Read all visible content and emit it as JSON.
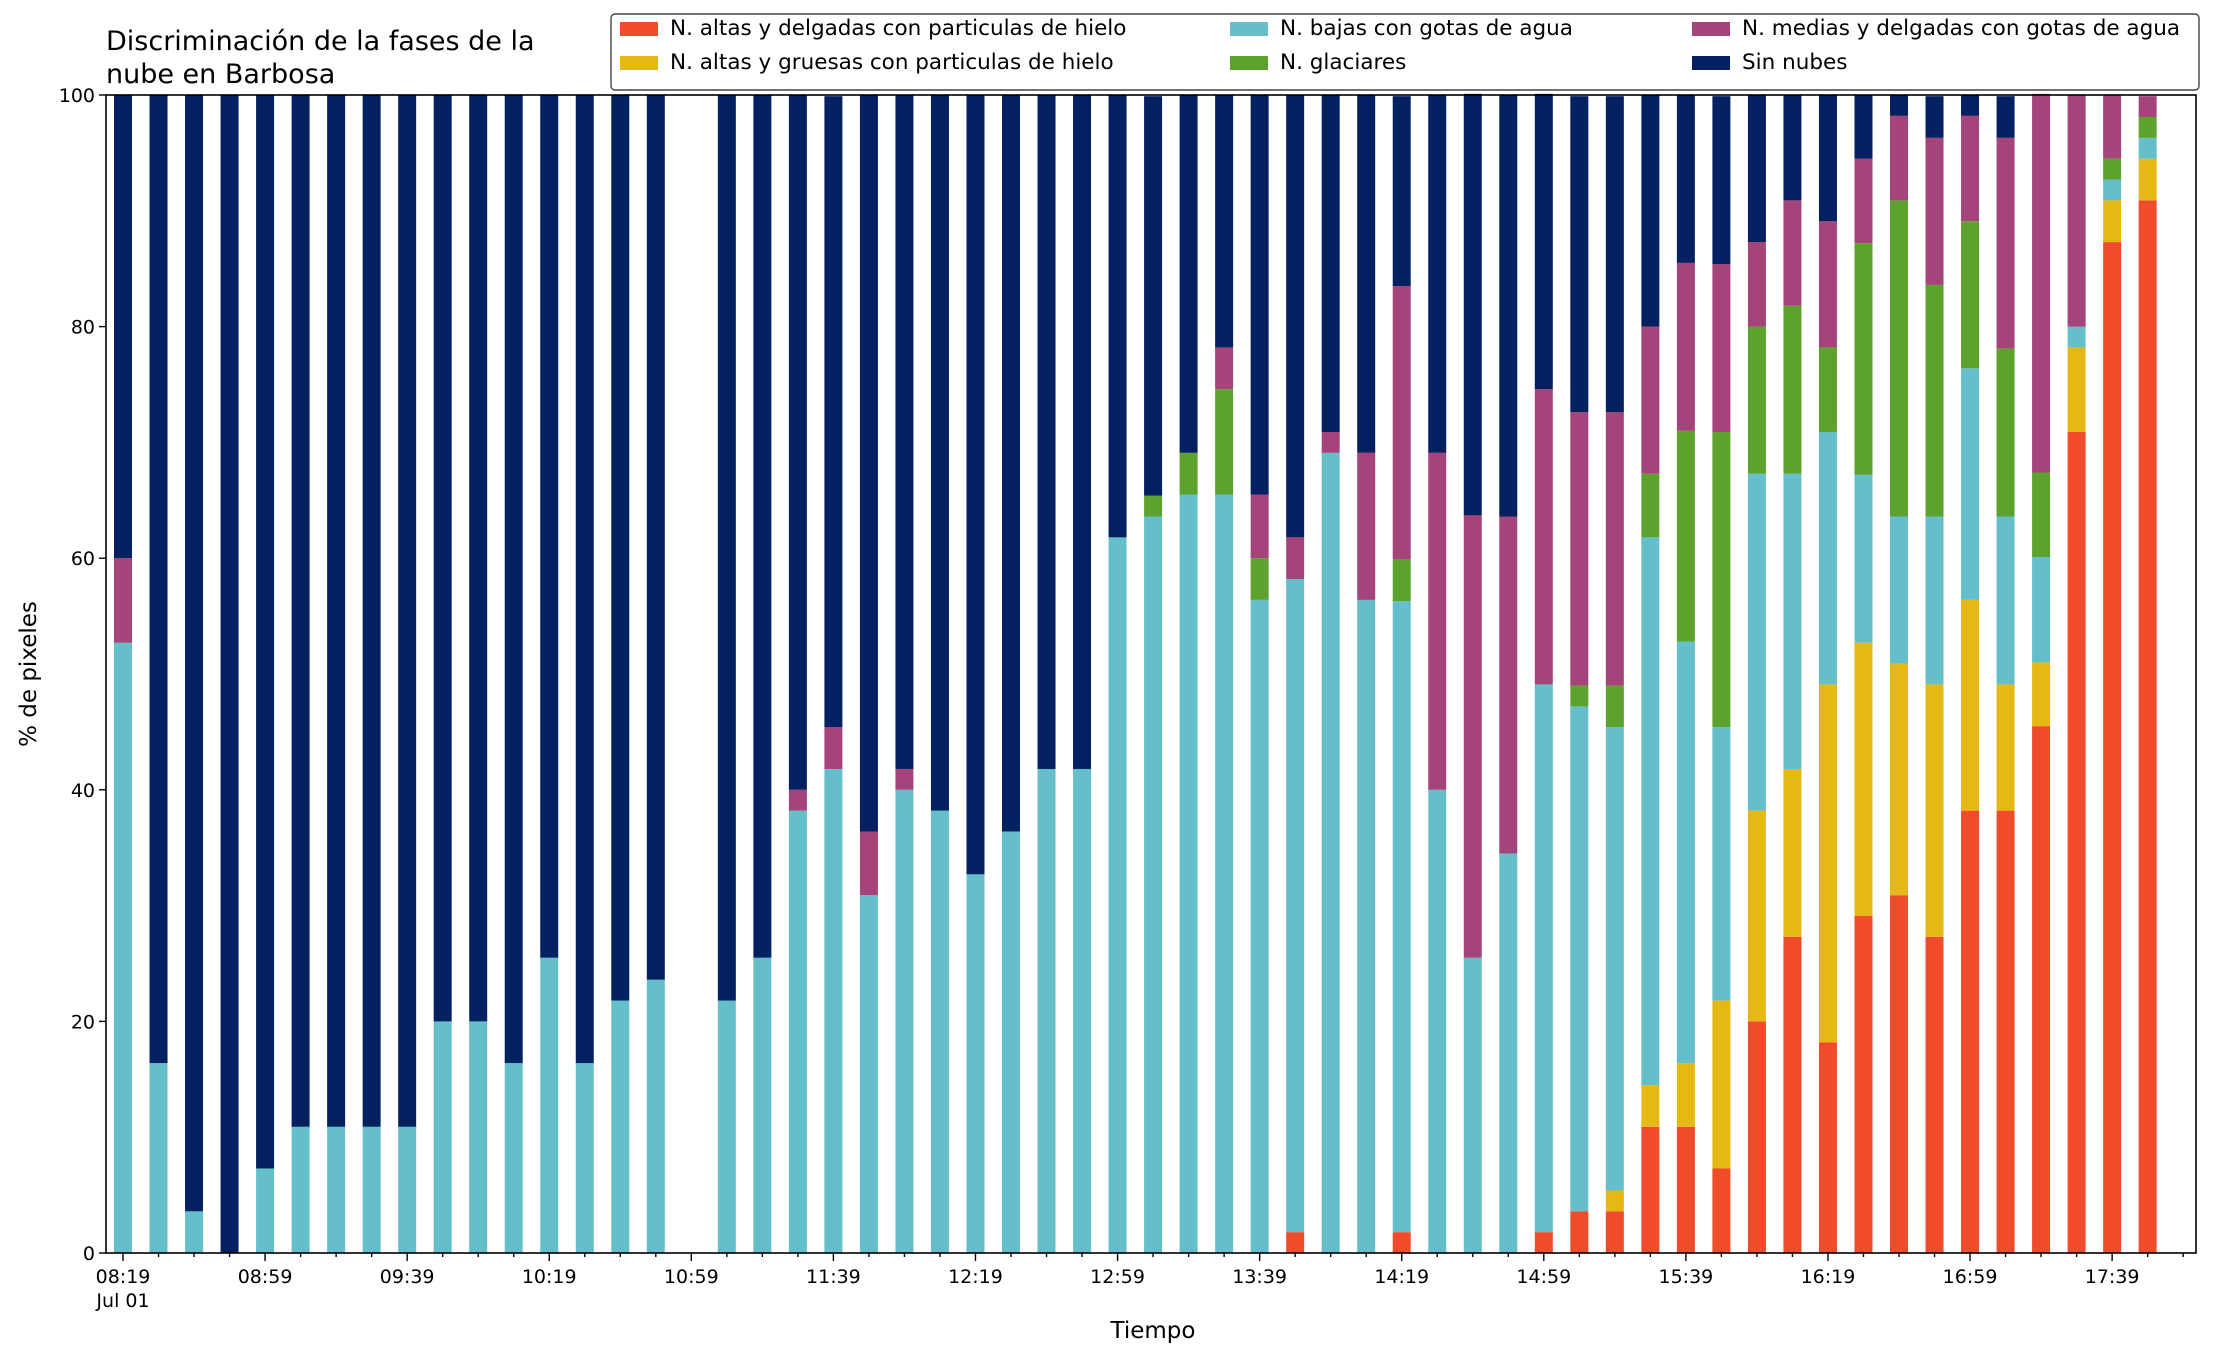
{
  "chart_data": {
    "type": "bar",
    "stacked": true,
    "title_lines": [
      "Discriminación de la fases de la",
      "nube en Barbosa"
    ],
    "xlabel": "Tiempo",
    "ylabel": "% de pixeles",
    "ylim": [
      0,
      100
    ],
    "yticks": [
      0,
      20,
      40,
      60,
      80,
      100
    ],
    "x_time_start": "08:19",
    "x_interval_minutes": 10,
    "x_date_label": "Jul 01",
    "xtick_labels": [
      "08:19",
      "08:59",
      "09:39",
      "10:19",
      "10:59",
      "11:39",
      "12:19",
      "12:59",
      "13:39",
      "14:19",
      "14:59",
      "15:39",
      "16:19",
      "16:59",
      "17:39"
    ],
    "legend_position": "top-right",
    "legend_columns": 3,
    "grid": false,
    "x": [
      "08:19",
      "08:29",
      "08:39",
      "08:49",
      "08:59",
      "09:09",
      "09:19",
      "09:29",
      "09:39",
      "09:49",
      "09:59",
      "10:09",
      "10:19",
      "10:29",
      "10:39",
      "10:49",
      "10:59",
      "11:09",
      "11:19",
      "11:29",
      "11:39",
      "11:49",
      "11:59",
      "12:09",
      "12:19",
      "12:29",
      "12:39",
      "12:49",
      "12:59",
      "13:09",
      "13:19",
      "13:29",
      "13:39",
      "13:49",
      "13:59",
      "14:09",
      "14:19",
      "14:29",
      "14:39",
      "14:49",
      "14:59",
      "15:09",
      "15:19",
      "15:29",
      "15:39",
      "15:49",
      "15:59",
      "16:09",
      "16:19",
      "16:29",
      "16:39",
      "16:49",
      "16:59",
      "17:09",
      "17:19",
      "17:29",
      "17:39",
      "17:49"
    ],
    "series": [
      {
        "name": "N. altas y delgadas con particulas de hielo",
        "color": "#f04b2b",
        "values": [
          0,
          0,
          0,
          0,
          0,
          0,
          0,
          0,
          0,
          0,
          0,
          0,
          0,
          0,
          0,
          0,
          0,
          0,
          0,
          0,
          0,
          0,
          0,
          0,
          0,
          0,
          0,
          0,
          0,
          0,
          0,
          0,
          0,
          1.8,
          0,
          0,
          1.8,
          0,
          0,
          0,
          1.8,
          3.6,
          3.6,
          10.9,
          10.9,
          7.3,
          20,
          27.3,
          18.2,
          29.1,
          30.9,
          27.3,
          38.2,
          38.2,
          45.5,
          70.9,
          87.3,
          90.9
        ]
      },
      {
        "name": "N. altas y gruesas con particulas de hielo",
        "color": "#e6b815",
        "values": [
          0,
          0,
          0,
          0,
          0,
          0,
          0,
          0,
          0,
          0,
          0,
          0,
          0,
          0,
          0,
          0,
          0,
          0,
          0,
          0,
          0,
          0,
          0,
          0,
          0,
          0,
          0,
          0,
          0,
          0,
          0,
          0,
          0,
          0,
          0,
          0,
          0,
          0,
          0,
          0,
          0,
          0,
          1.8,
          3.6,
          5.5,
          14.5,
          18.2,
          14.5,
          30.9,
          23.6,
          20,
          21.8,
          18.2,
          10.9,
          5.5,
          7.3,
          3.6,
          3.6
        ]
      },
      {
        "name": "N. bajas con gotas de agua",
        "color": "#65bfcb",
        "values": [
          52.7,
          16.4,
          3.6,
          0,
          7.3,
          10.9,
          10.9,
          10.9,
          10.9,
          20,
          20,
          16.4,
          25.5,
          16.4,
          21.8,
          23.6,
          0,
          21.8,
          25.5,
          38.2,
          41.8,
          30.9,
          40,
          38.2,
          32.7,
          36.4,
          41.8,
          41.8,
          61.8,
          63.6,
          65.5,
          65.5,
          56.4,
          56.4,
          69.1,
          56.4,
          54.5,
          40,
          25.5,
          34.5,
          47.3,
          43.6,
          40,
          47.3,
          36.4,
          23.6,
          29.1,
          25.5,
          21.8,
          14.5,
          12.7,
          14.5,
          20,
          14.5,
          9.1,
          1.8,
          1.8,
          1.8
        ]
      },
      {
        "name": "N. glaciares",
        "color": "#5ea22e",
        "values": [
          0,
          0,
          0,
          0,
          0,
          0,
          0,
          0,
          0,
          0,
          0,
          0,
          0,
          0,
          0,
          0,
          0,
          0,
          0,
          0,
          0,
          0,
          0,
          0,
          0,
          0,
          0,
          0,
          0,
          1.8,
          3.6,
          9.1,
          3.6,
          0,
          0,
          0,
          3.6,
          0,
          0,
          0,
          0,
          1.8,
          3.6,
          5.5,
          18.2,
          25.5,
          12.7,
          14.5,
          7.3,
          20,
          27.3,
          20,
          12.7,
          14.5,
          7.3,
          0,
          1.8,
          1.8
        ]
      },
      {
        "name": "N. medias y delgadas con gotas de agua",
        "color": "#a5447a",
        "values": [
          7.3,
          0,
          0,
          0,
          0,
          0,
          0,
          0,
          0,
          0,
          0,
          0,
          0,
          0,
          0,
          0,
          0,
          0,
          0,
          1.8,
          3.6,
          5.5,
          1.8,
          0,
          0,
          0,
          0,
          0,
          0,
          0,
          0,
          3.6,
          5.5,
          3.6,
          1.8,
          12.7,
          23.6,
          29.1,
          38.2,
          29.1,
          25.5,
          23.6,
          23.6,
          12.7,
          14.5,
          14.5,
          7.3,
          9.1,
          10.9,
          7.3,
          7.3,
          12.7,
          9.1,
          18.2,
          32.7,
          20,
          5.5,
          1.8
        ]
      },
      {
        "name": "Sin nubes",
        "color": "#032061",
        "values": [
          40,
          83.6,
          96.4,
          100,
          92.7,
          89.1,
          89.1,
          89.1,
          89.1,
          80,
          80,
          83.6,
          74.5,
          83.6,
          78.2,
          76.4,
          0,
          78.2,
          74.5,
          60,
          54.5,
          63.6,
          58.2,
          61.8,
          67.3,
          63.6,
          58.2,
          58.2,
          38.2,
          34.5,
          30.9,
          21.8,
          34.5,
          38.2,
          29.1,
          30.9,
          16.4,
          30.9,
          36.4,
          36.4,
          25.5,
          27.3,
          27.3,
          20,
          14.5,
          14.5,
          12.7,
          9.1,
          10.9,
          5.5,
          1.8,
          3.6,
          1.8,
          3.6,
          0,
          0,
          0,
          0
        ]
      }
    ]
  }
}
